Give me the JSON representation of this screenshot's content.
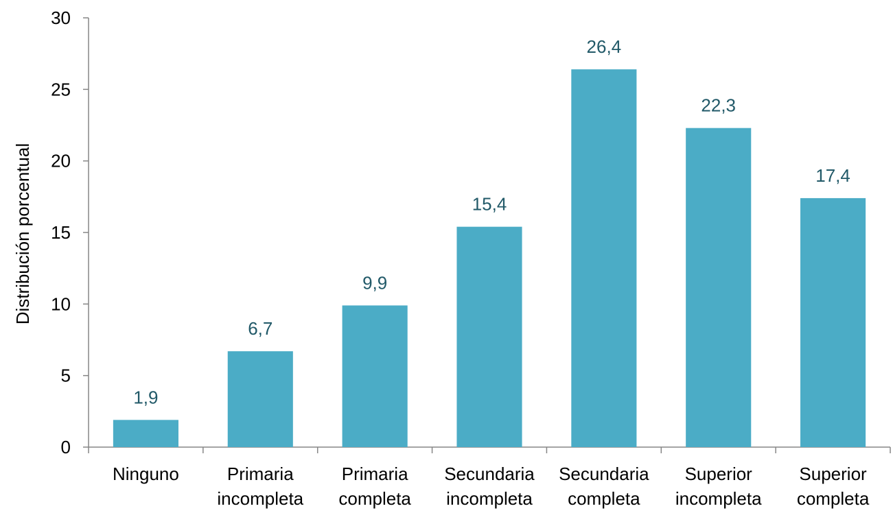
{
  "chart_data": {
    "type": "bar",
    "title": "",
    "xlabel": "",
    "ylabel": "Distribución porcentual",
    "ylim": [
      0,
      30
    ],
    "yticks": [
      0,
      5,
      10,
      15,
      20,
      25,
      30
    ],
    "grid": false,
    "legend": "none",
    "categories": [
      [
        "Ninguno"
      ],
      [
        "Primaria",
        "incompleta"
      ],
      [
        "Primaria",
        "completa"
      ],
      [
        "Secundaria",
        "incompleta"
      ],
      [
        "Secundaria",
        "completa"
      ],
      [
        "Superior",
        "incompleta"
      ],
      [
        "Superior",
        "completa"
      ]
    ],
    "values": [
      1.9,
      6.7,
      9.9,
      15.4,
      26.4,
      22.3,
      17.4
    ],
    "value_labels": [
      "1,9",
      "6,7",
      "9,9",
      "15,4",
      "26,4",
      "22,3",
      "17,4"
    ],
    "bar_color": "#4BACC6",
    "label_color": "#215968"
  }
}
